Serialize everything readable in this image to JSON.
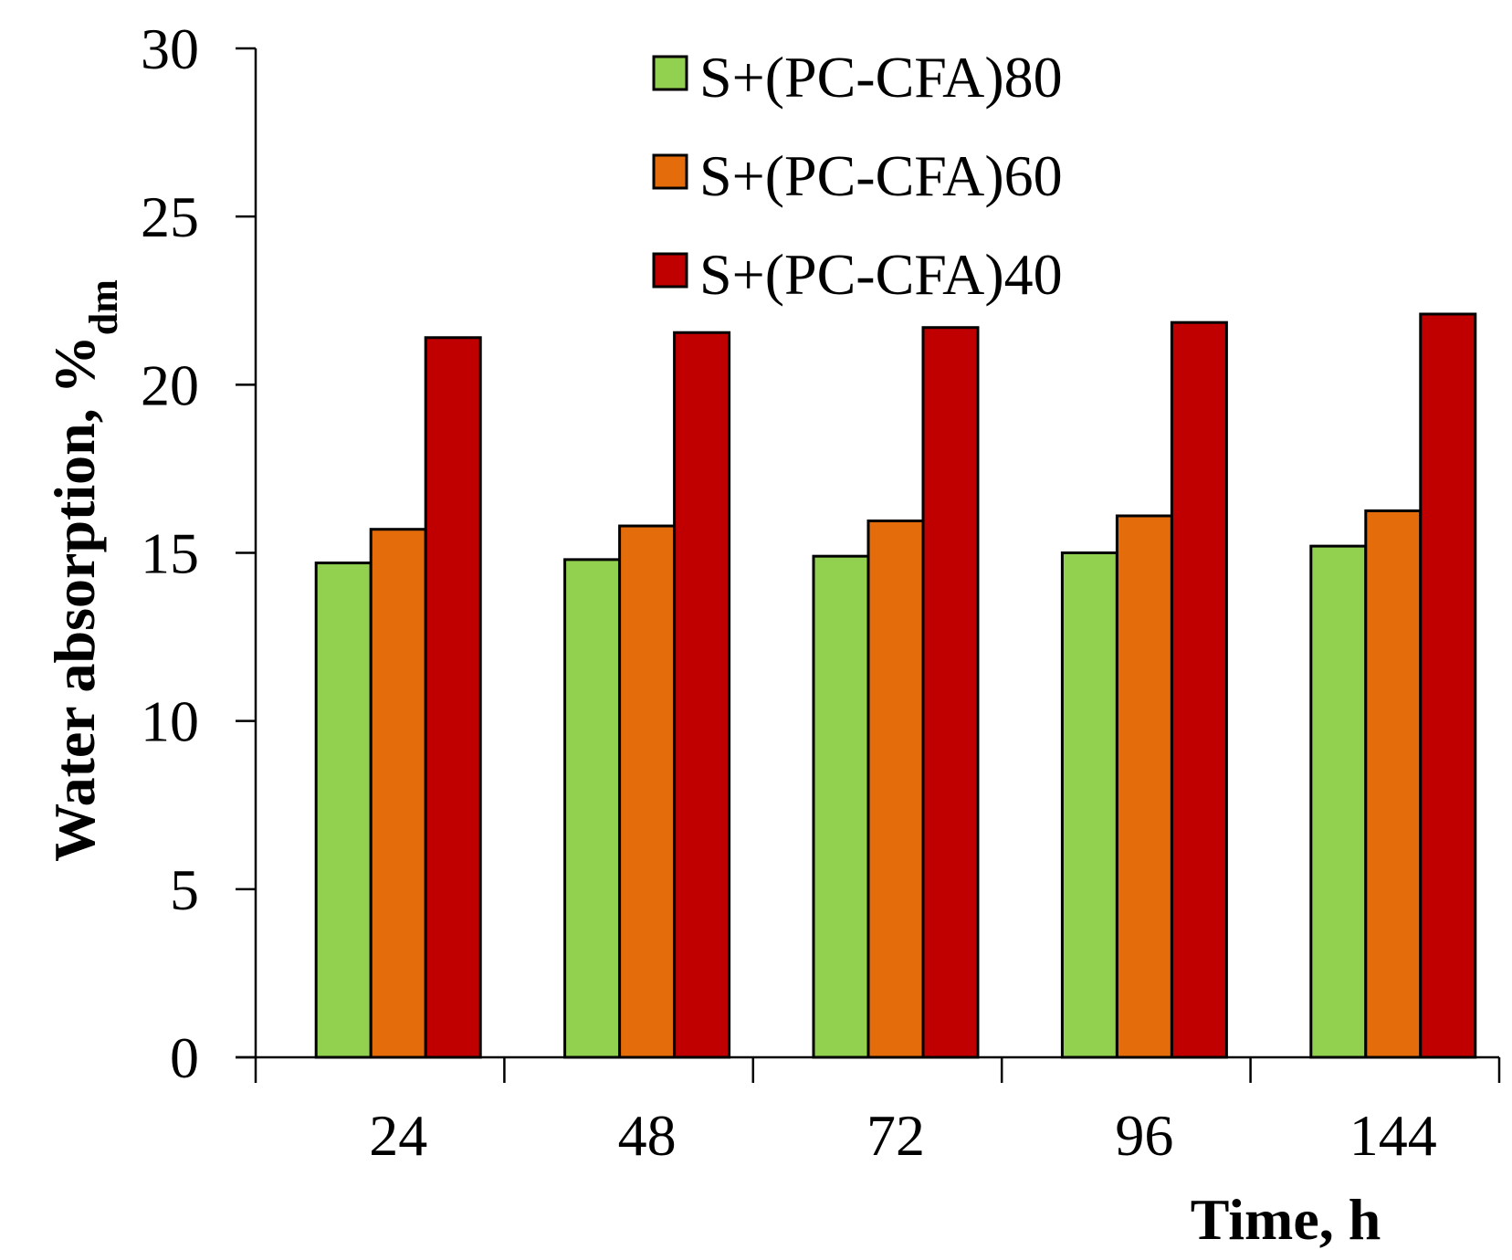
{
  "chart_data": {
    "type": "bar",
    "xlabel": "Time, h",
    "ylabel": "Water absorption, %",
    "ylabel_sub": "dm",
    "categories": [
      "24",
      "48",
      "72",
      "96",
      "144"
    ],
    "ylim": [
      0,
      30
    ],
    "yticks": [
      "0",
      "5",
      "10",
      "15",
      "20",
      "25",
      "30"
    ],
    "grid": false,
    "legend_position": "top-right",
    "series": [
      {
        "name": "S+(PC-CFA)80",
        "color": "#92d050",
        "values": [
          14.7,
          14.8,
          14.9,
          15.0,
          15.2
        ]
      },
      {
        "name": "S+(PC-CFA)60",
        "color": "#e46c0a",
        "values": [
          15.7,
          15.8,
          15.95,
          16.1,
          16.25
        ]
      },
      {
        "name": "S+(PC-CFA)40",
        "color": "#c00000",
        "values": [
          21.4,
          21.55,
          21.7,
          21.85,
          22.1
        ]
      }
    ]
  }
}
